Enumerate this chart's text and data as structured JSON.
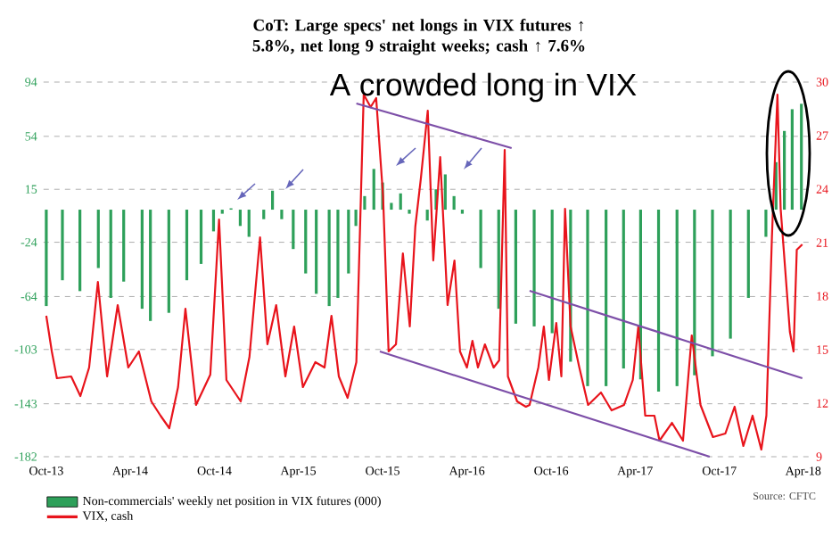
{
  "chart_data": {
    "type": "bar",
    "title": "CoT: Large specs' net longs in VIX futures ↑ 5.8%, net long 9 straight weeks; cash ↑ 7.6%",
    "annotations": [
      "A crowded long in VIX",
      "Source: CFTC"
    ],
    "xlim": [
      "2013-09-25",
      "2018-04-15"
    ],
    "xticks": [
      {
        "value": "2013-10-01",
        "label": "Oct-13"
      },
      {
        "value": "2014-04-01",
        "label": "Apr-14"
      },
      {
        "value": "2014-10-01",
        "label": "Oct-14"
      },
      {
        "value": "2015-04-01",
        "label": "Apr-15"
      },
      {
        "value": "2015-10-01",
        "label": "Oct-15"
      },
      {
        "value": "2016-04-01",
        "label": "Apr-16"
      },
      {
        "value": "2016-10-01",
        "label": "Oct-16"
      },
      {
        "value": "2017-04-01",
        "label": "Apr-17"
      },
      {
        "value": "2017-10-01",
        "label": "Oct-17"
      },
      {
        "value": "2018-04-01",
        "label": "Apr-18"
      }
    ],
    "ylim": [
      -182,
      94
    ],
    "yticks": [
      94,
      54,
      15,
      -24,
      -64,
      -103,
      -143,
      -182
    ],
    "y2lim": [
      9,
      30
    ],
    "y2ticks": [
      9,
      12,
      15,
      18,
      21,
      24,
      27,
      30
    ],
    "grid": "y",
    "legend": "bottom left",
    "series": [
      {
        "name": "Non-commercials' weekly net position in VIX futures (000)",
        "color": "#2ea05a",
        "x": [
          "2013-10-01",
          "2013-11-05",
          "2013-12-13",
          "2014-01-22",
          "2014-02-18",
          "2014-03-18",
          "2014-04-27",
          "2014-05-15",
          "2014-06-24",
          "2014-08-02",
          "2014-09-02",
          "2014-09-29",
          "2014-10-18",
          "2014-11-06",
          "2014-11-26",
          "2014-12-15",
          "2015-01-16",
          "2015-02-04",
          "2015-02-24",
          "2015-03-21",
          "2015-04-17",
          "2015-05-10",
          "2015-06-07",
          "2015-06-26",
          "2015-07-19",
          "2015-08-04",
          "2015-08-23",
          "2015-09-12",
          "2015-10-01",
          "2015-10-20",
          "2015-11-09",
          "2015-11-28",
          "2015-12-17",
          "2016-01-06",
          "2016-01-25",
          "2016-02-14",
          "2016-03-04",
          "2016-03-22",
          "2016-05-01",
          "2016-06-09",
          "2016-07-16",
          "2016-08-25",
          "2016-10-03",
          "2016-11-12",
          "2016-12-19",
          "2017-01-28",
          "2017-03-07",
          "2017-04-13",
          "2017-05-22",
          "2017-07-01",
          "2017-08-08",
          "2017-09-16",
          "2017-10-25",
          "2017-12-03",
          "2018-01-10",
          "2018-02-01",
          "2018-02-19",
          "2018-03-08",
          "2018-03-28"
        ],
        "values": [
          -71,
          -52,
          -60,
          -43,
          -65,
          -53,
          -73,
          -82,
          -76,
          -52,
          -40,
          -16,
          -3,
          1,
          -12,
          -20,
          -7,
          14,
          -7,
          -29,
          -47,
          -62,
          -71,
          -65,
          -47,
          -12,
          10,
          30,
          20,
          5,
          12,
          -3,
          null,
          -8,
          15,
          26,
          10,
          -3,
          -43,
          -73,
          -84,
          -86,
          -91,
          -112,
          -130,
          -130,
          -117,
          -125,
          -134,
          -130,
          -122,
          -108,
          -95,
          -65,
          -20,
          35,
          58,
          74,
          78
        ]
      },
      {
        "name": "VIX, cash",
        "type": "line",
        "axis": "y2",
        "color": "#e8141c",
        "x": [
          "2013-10-01",
          "2013-10-13",
          "2013-10-24",
          "2013-11-24",
          "2013-12-14",
          "2014-01-02",
          "2014-01-21",
          "2014-02-10",
          "2014-03-05",
          "2014-03-28",
          "2014-04-20",
          "2014-05-17",
          "2014-06-06",
          "2014-06-25",
          "2014-07-14",
          "2014-07-30",
          "2014-08-22",
          "2014-09-22",
          "2014-10-11",
          "2014-10-27",
          "2014-11-27",
          "2014-12-16",
          "2015-01-08",
          "2015-01-24",
          "2015-02-12",
          "2015-03-04",
          "2015-03-23",
          "2015-04-11",
          "2015-05-08",
          "2015-05-28",
          "2015-06-12",
          "2015-06-28",
          "2015-07-17",
          "2015-08-05",
          "2015-08-21",
          "2015-09-05",
          "2015-09-17",
          "2015-10-02",
          "2015-10-14",
          "2015-10-30",
          "2015-11-14",
          "2015-11-29",
          "2015-12-11",
          "2015-12-23",
          "2016-01-07",
          "2016-01-19",
          "2016-02-03",
          "2016-02-19",
          "2016-03-05",
          "2016-03-17",
          "2016-04-01",
          "2016-04-13",
          "2016-04-25",
          "2016-05-10",
          "2016-05-29",
          "2016-06-10",
          "2016-06-22",
          "2016-06-29",
          "2016-07-19",
          "2016-08-07",
          "2016-08-15",
          "2016-09-03",
          "2016-09-15",
          "2016-09-26",
          "2016-10-12",
          "2016-10-23",
          "2016-10-31",
          "2016-11-12",
          "2016-12-01",
          "2016-12-20",
          "2017-01-17",
          "2017-02-09",
          "2017-03-08",
          "2017-03-27",
          "2017-04-08",
          "2017-04-23",
          "2017-05-13",
          "2017-05-24",
          "2017-06-20",
          "2017-07-14",
          "2017-08-02",
          "2017-08-21",
          "2017-09-17",
          "2017-10-14",
          "2017-11-03",
          "2017-11-22",
          "2017-12-12",
          "2017-12-31",
          "2018-01-11",
          "2018-01-23",
          "2018-02-04",
          "2018-02-11",
          "2018-03-03",
          "2018-03-11",
          "2018-03-18",
          "2018-03-30"
        ],
        "values": [
          16.9,
          14.9,
          13.4,
          13.5,
          12.4,
          14.0,
          18.8,
          13.5,
          17.5,
          14.0,
          14.9,
          12.1,
          11.3,
          10.6,
          12.9,
          17.3,
          11.9,
          13.6,
          22.3,
          13.3,
          12.1,
          14.6,
          21.3,
          15.3,
          17.5,
          13.5,
          16.3,
          12.9,
          14.3,
          14.0,
          16.9,
          13.5,
          12.3,
          14.3,
          29.3,
          28.6,
          29.1,
          23.6,
          14.9,
          15.3,
          20.4,
          16.3,
          21.9,
          24.6,
          28.4,
          20.0,
          25.8,
          17.5,
          20.0,
          14.9,
          14.0,
          15.5,
          14.0,
          15.3,
          14.0,
          14.4,
          26.2,
          13.5,
          12.1,
          11.8,
          11.9,
          14.0,
          16.3,
          13.3,
          16.5,
          13.5,
          22.9,
          16.3,
          14.0,
          11.9,
          12.6,
          11.6,
          11.9,
          13.3,
          16.3,
          11.3,
          11.3,
          9.9,
          10.9,
          9.9,
          15.8,
          11.9,
          10.1,
          10.3,
          11.8,
          9.6,
          11.3,
          9.4,
          11.3,
          21.3,
          29.3,
          22.9,
          16.0,
          14.9,
          20.6,
          20.9
        ]
      },
      {
        "type": "line",
        "axis": "y2",
        "color": "#7d4fa8",
        "x": [
          "2015-08-05",
          "2016-07-07"
        ],
        "values": [
          28.8,
          26.3
        ]
      },
      {
        "type": "line",
        "axis": "y2",
        "color": "#7d4fa8",
        "x": [
          "2015-09-25",
          "2017-09-10"
        ],
        "values": [
          14.9,
          9.0
        ]
      },
      {
        "type": "line",
        "axis": "y2",
        "color": "#7d4fa8",
        "x": [
          "2016-08-15",
          "2018-03-30"
        ],
        "values": [
          18.3,
          13.4
        ]
      }
    ]
  }
}
